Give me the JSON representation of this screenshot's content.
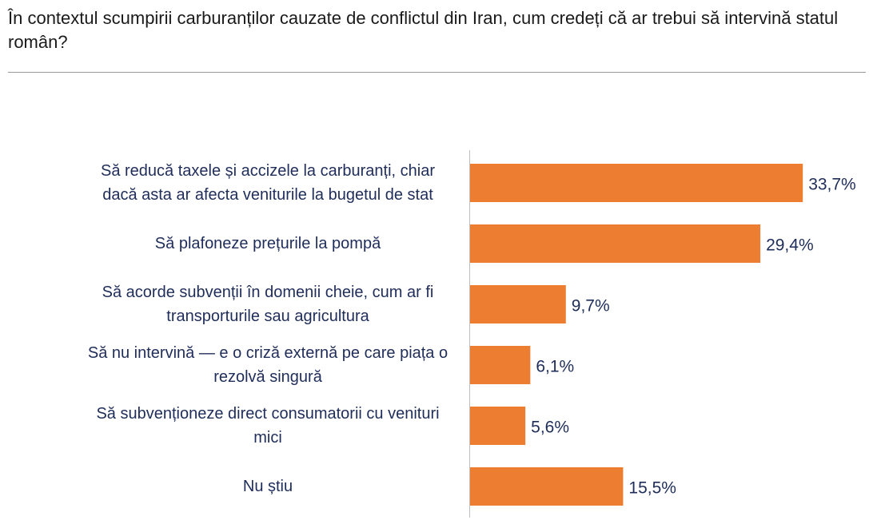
{
  "chart_data": {
    "type": "bar",
    "orientation": "horizontal",
    "title": "În contextul scumpirii carburanților cauzate de conflictul din Iran, cum credeți că ar trebui să intervină statul român?",
    "categories": [
      "Să reducă taxele și accizele la carburanți, chiar dacă asta ar afecta veniturile la bugetul de stat",
      "Să plafoneze prețurile la pompă",
      "Să acorde subvenții în domenii cheie, cum ar fi transporturile sau agricultura",
      "Să nu intervină — e o criză externă pe care piața o rezolvă singură",
      "Să subvenționeze direct consumatorii cu venituri mici",
      "Nu știu"
    ],
    "values": [
      33.7,
      29.4,
      9.7,
      6.1,
      5.6,
      15.5
    ],
    "value_labels": [
      "33,7%",
      "29,4%",
      "9,7%",
      "6,1%",
      "5,6%",
      "15,5%"
    ],
    "color": "#ed7d31"
  }
}
